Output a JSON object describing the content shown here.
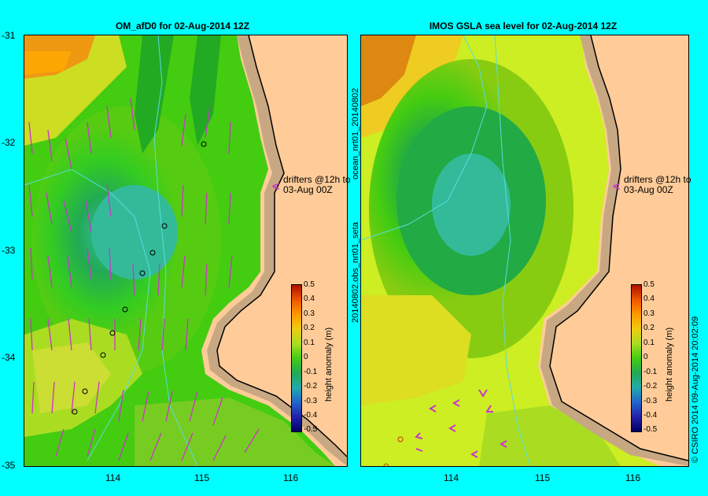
{
  "left_panel": {
    "title": "OM_afD0 for 02-Aug-2014 12Z",
    "x_ticks": [
      "114",
      "115",
      "116"
    ],
    "y_ticks": [
      "-31",
      "-32",
      "-33",
      "-34",
      "-35"
    ],
    "note_line1": "drifters @12h to",
    "note_line2": "03-Aug 00Z",
    "colorbar": {
      "label": "height anomaly (m)",
      "ticks": [
        "0.5",
        "0.4",
        "0.3",
        "0.2",
        "0.1",
        "0",
        "-0.1",
        "-0.2",
        "-0.3",
        "-0.4",
        "-0.5"
      ]
    }
  },
  "right_panel": {
    "title": "IMOS GSLA sea level  for 02-Aug-2014 12Z",
    "x_ticks": [
      "114",
      "115",
      "116"
    ],
    "note_line1": "drifters @12h to",
    "note_line2": "03-Aug 00Z",
    "side_label_top": "ocean_nrt01_20140802",
    "side_label_bottom": "20140802.obs_nrt01_seta",
    "colorbar": {
      "label": "height anomaly (m)",
      "ticks": [
        "0.5",
        "0.4",
        "0.3",
        "0.2",
        "0.1",
        "0",
        "-0.1",
        "-0.2",
        "-0.3",
        "-0.4",
        "-0.5"
      ]
    }
  },
  "credit": "© CSIRO 2014   09-Aug-2014 20:02:09",
  "colors": {
    "background": "#00ffff",
    "land": "#ffcc99",
    "shelf": "#c8a882",
    "arrow": "#cc33cc",
    "coast": "#000000"
  }
}
